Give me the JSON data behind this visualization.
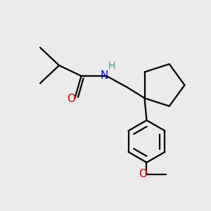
{
  "background_color": "#ebebeb",
  "bond_color": "#000000",
  "atom_colors": {
    "O": "#cc0000",
    "N": "#0000cc",
    "H": "#339999",
    "C": "#000000"
  },
  "lw": 1.6,
  "figsize": [
    3.0,
    3.0
  ],
  "dpi": 100
}
